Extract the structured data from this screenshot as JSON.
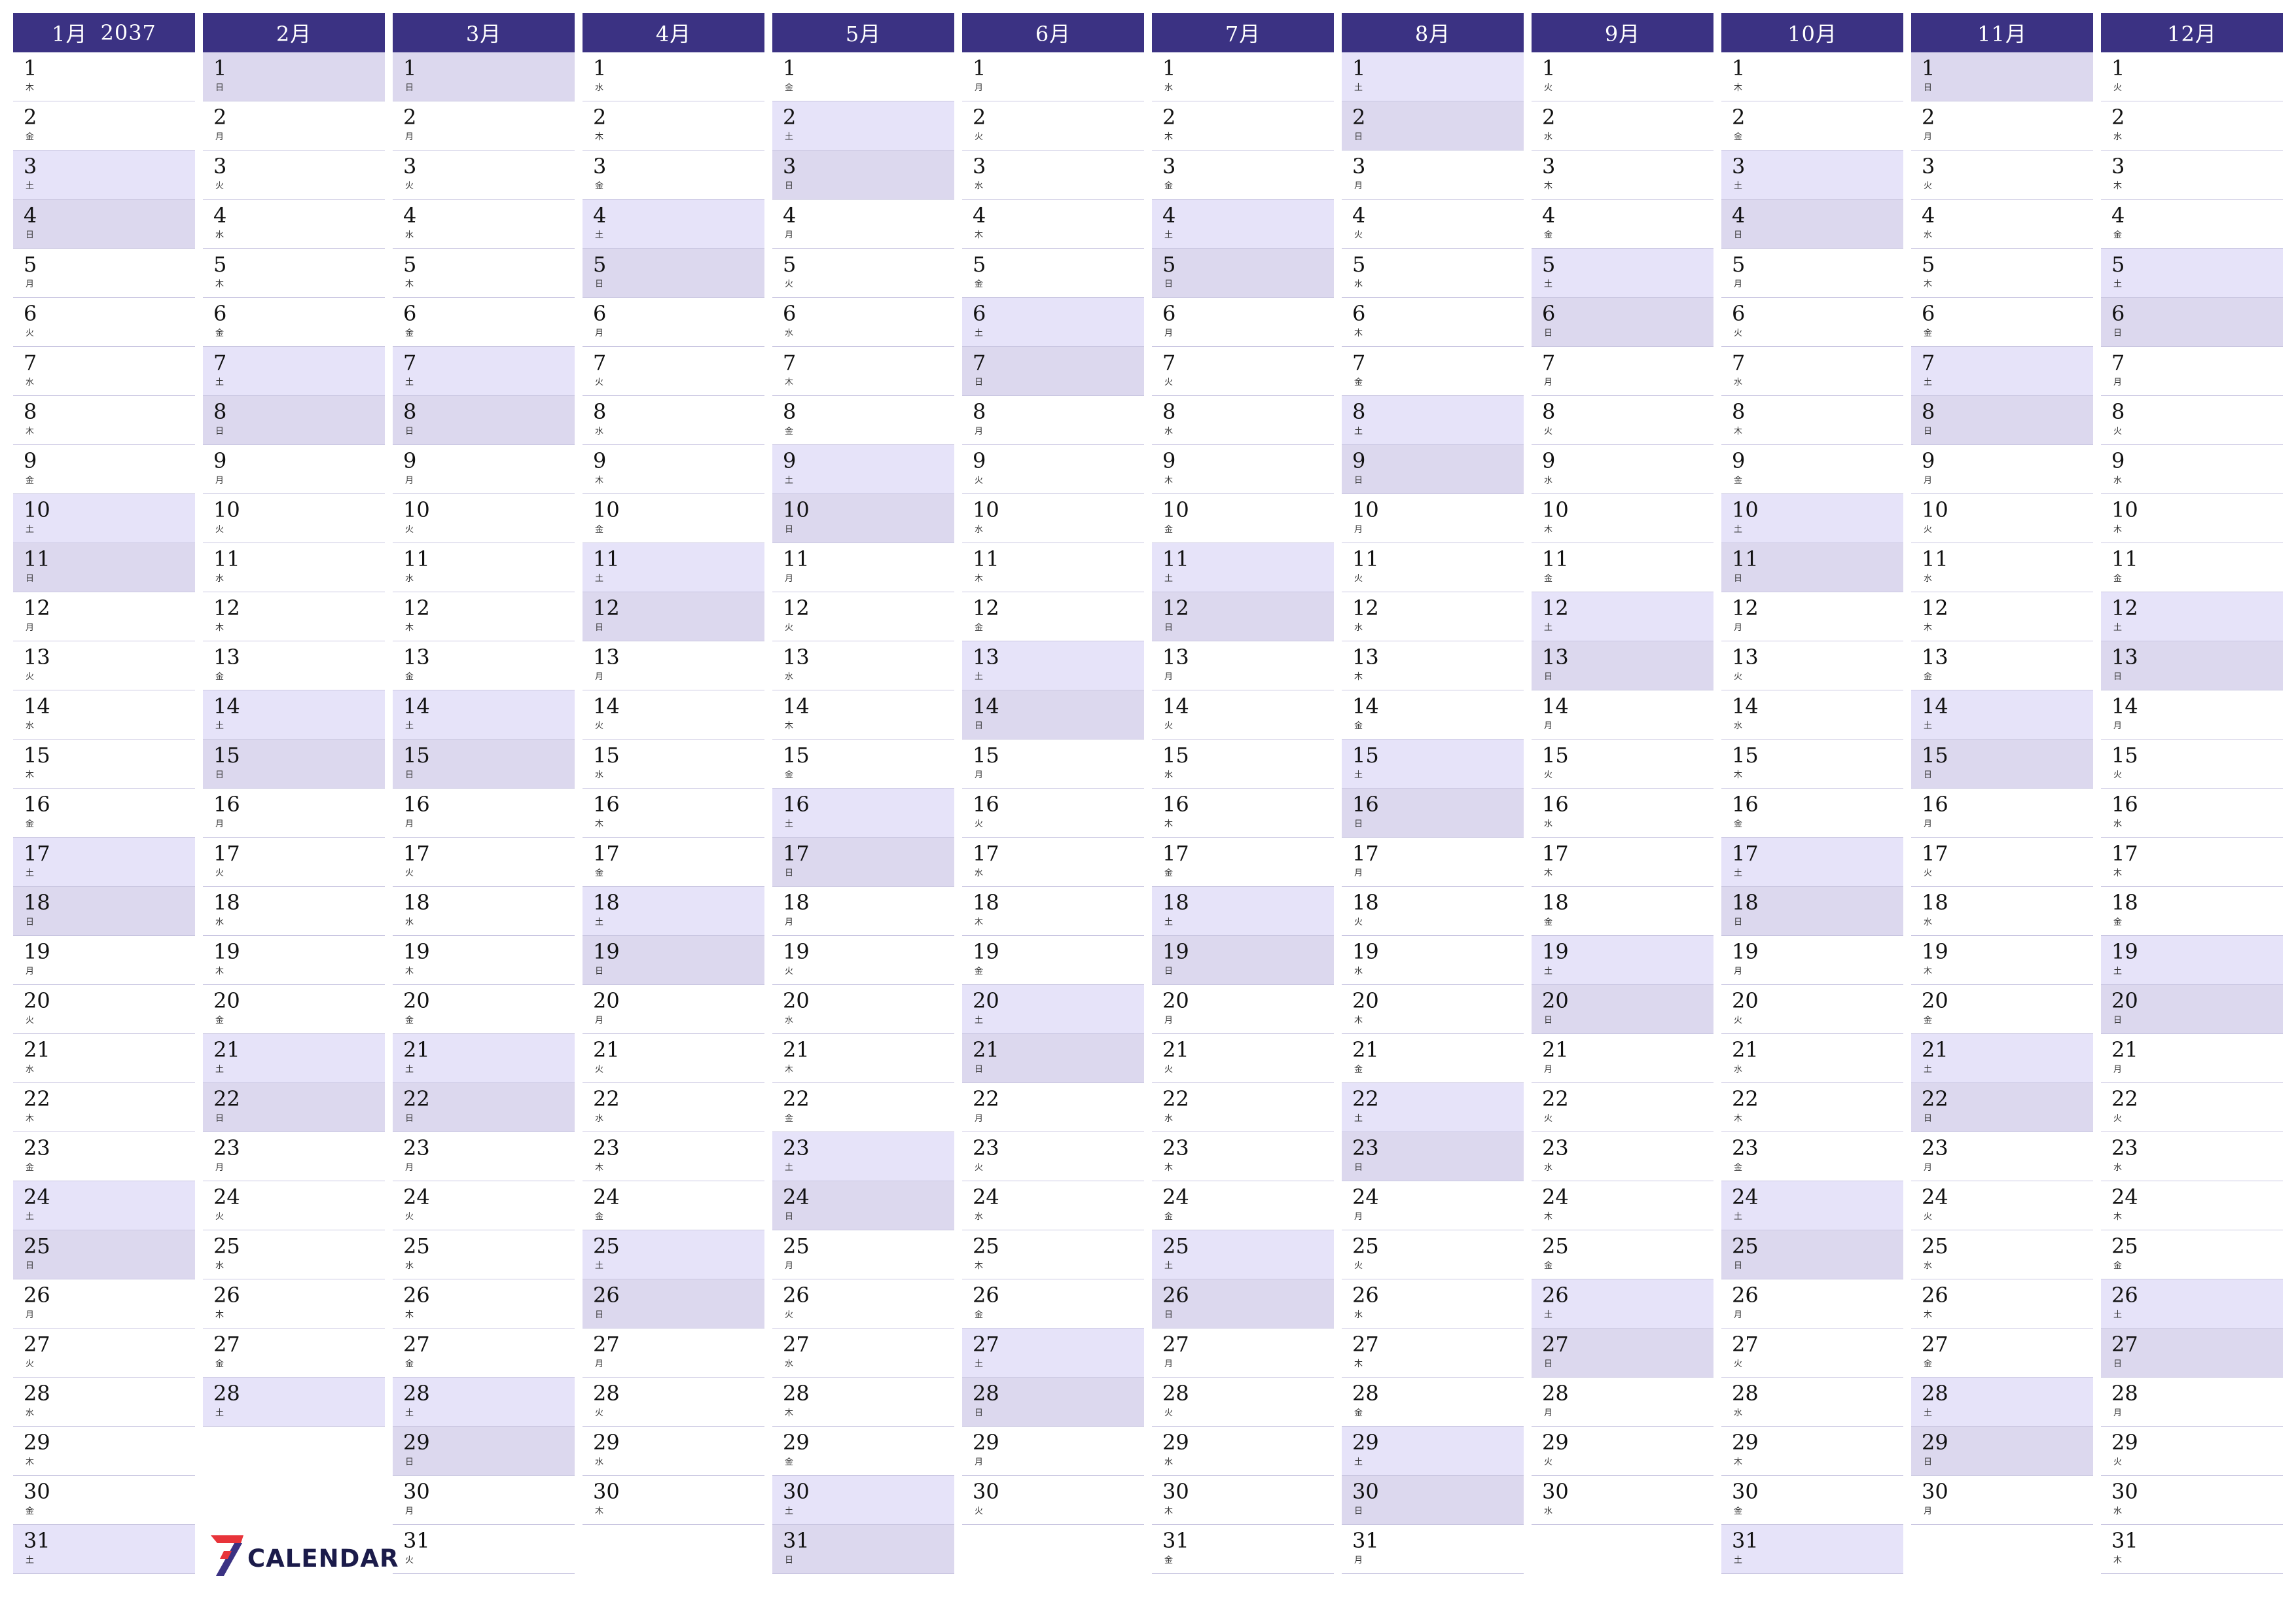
{
  "year": "2037",
  "weekday_names": [
    "月",
    "火",
    "水",
    "木",
    "金",
    "土",
    "日"
  ],
  "logo": {
    "text": "CALENDAR",
    "mark": "7"
  },
  "colors": {
    "header_bg": "#3b3283",
    "saturday_bg": "#e6e3f9",
    "sunday_bg": "#dcd8ee",
    "row_divider": "#c9c6e1",
    "logo_red": "#e8343a",
    "logo_navy": "#3b3283"
  },
  "months": [
    {
      "label": "1月",
      "days": 31,
      "first_weekday": 3
    },
    {
      "label": "2月",
      "days": 28,
      "first_weekday": 6
    },
    {
      "label": "3月",
      "days": 31,
      "first_weekday": 6
    },
    {
      "label": "4月",
      "days": 30,
      "first_weekday": 2
    },
    {
      "label": "5月",
      "days": 31,
      "first_weekday": 4
    },
    {
      "label": "6月",
      "days": 30,
      "first_weekday": 0
    },
    {
      "label": "7月",
      "days": 31,
      "first_weekday": 2
    },
    {
      "label": "8月",
      "days": 31,
      "first_weekday": 5
    },
    {
      "label": "9月",
      "days": 30,
      "first_weekday": 1
    },
    {
      "label": "10月",
      "days": 31,
      "first_weekday": 3
    },
    {
      "label": "11月",
      "days": 30,
      "first_weekday": 6
    },
    {
      "label": "12月",
      "days": 31,
      "first_weekday": 1
    }
  ]
}
